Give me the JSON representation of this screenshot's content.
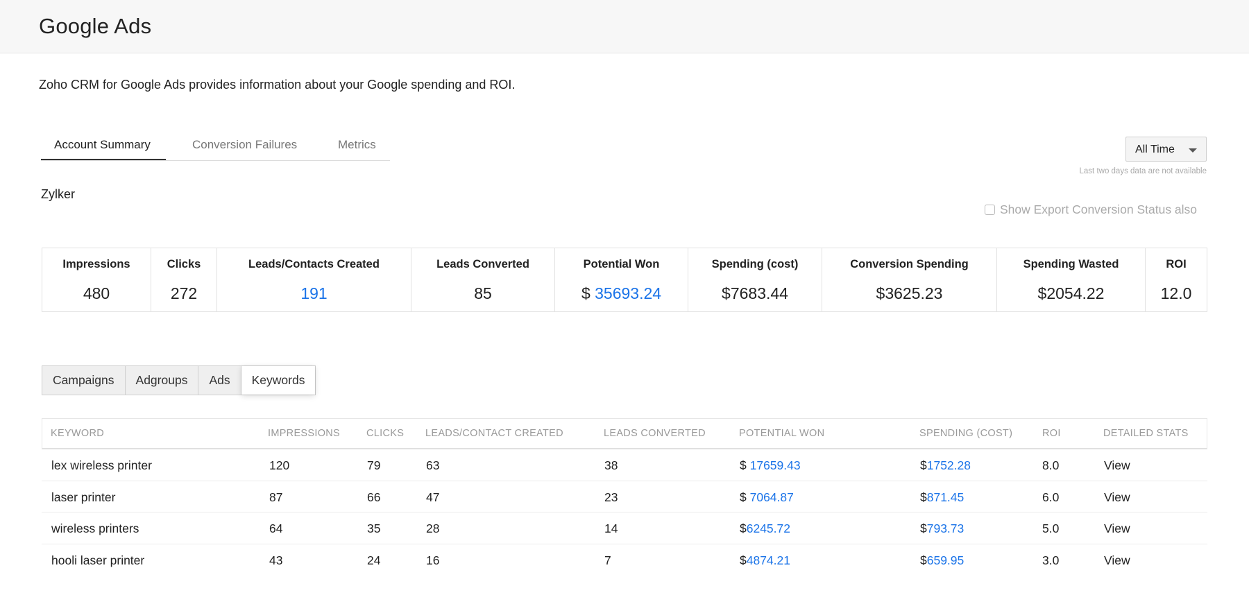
{
  "app": {
    "title": "Google Ads"
  },
  "description": "Zoho CRM for Google Ads provides information about your Google spending and ROI.",
  "tabs": [
    {
      "label": "Account Summary",
      "active": true
    },
    {
      "label": "Conversion Failures",
      "active": false
    },
    {
      "label": "Metrics",
      "active": false
    }
  ],
  "range": {
    "selected": "All Time",
    "note": "Last two days data are not available"
  },
  "account": {
    "name": "Zylker"
  },
  "export_toggle": {
    "label": "Show Export Conversion Status also",
    "checked": false
  },
  "summary": [
    {
      "label": "Impressions",
      "value": "480"
    },
    {
      "label": "Clicks",
      "value": "272"
    },
    {
      "label": "Leads/Contacts Created",
      "value": "191"
    },
    {
      "label": "Leads Converted",
      "value": "85"
    },
    {
      "label": "Potential Won",
      "currency": "$",
      "value": "35693.24"
    },
    {
      "label": "Spending (cost)",
      "value": "$7683.44"
    },
    {
      "label": "Conversion Spending",
      "value": "$3625.23"
    },
    {
      "label": "Spending Wasted",
      "value": "$2054.22"
    },
    {
      "label": "ROI",
      "value": "12.0"
    }
  ],
  "subtabs": [
    {
      "label": "Campaigns",
      "active": false
    },
    {
      "label": "Adgroups",
      "active": false
    },
    {
      "label": "Ads",
      "active": false
    },
    {
      "label": "Keywords",
      "active": true
    }
  ],
  "table": {
    "columns": [
      "KEYWORD",
      "IMPRESSIONS",
      "CLICKS",
      "LEADS/CONTACT CREATED",
      "LEADS CONVERTED",
      "POTENTIAL WON",
      "SPENDING (COST)",
      "ROI",
      "DETAILED STATS"
    ],
    "rows": [
      {
        "keyword": "lex wireless printer",
        "impressions": "120",
        "clicks": "79",
        "leads": "63",
        "converted": "38",
        "potential_prefix": "$ ",
        "potential": "17659.43",
        "spending_prefix": "$",
        "spending": "1752.28",
        "roi": "8.0",
        "stats": "View"
      },
      {
        "keyword": "laser printer",
        "impressions": "87",
        "clicks": "66",
        "leads": "47",
        "converted": "23",
        "potential_prefix": "$ ",
        "potential": "7064.87",
        "spending_prefix": "$",
        "spending": "871.45",
        "roi": "6.0",
        "stats": "View"
      },
      {
        "keyword": "wireless printers",
        "impressions": "64",
        "clicks": "35",
        "leads": "28",
        "converted": "14",
        "potential_prefix": "$",
        "potential": "6245.72",
        "spending_prefix": "$",
        "spending": "793.73",
        "roi": "5.0",
        "stats": "View"
      },
      {
        "keyword": "hooli laser printer",
        "impressions": "43",
        "clicks": "24",
        "leads": "16",
        "converted": "7",
        "potential_prefix": "$",
        "potential": "4874.21",
        "spending_prefix": "$",
        "spending": "659.95",
        "roi": "3.0",
        "stats": "View"
      }
    ]
  },
  "colors": {
    "link": "#1a73e8",
    "muted": "#999999",
    "header_bg": "#f7f7f7"
  }
}
